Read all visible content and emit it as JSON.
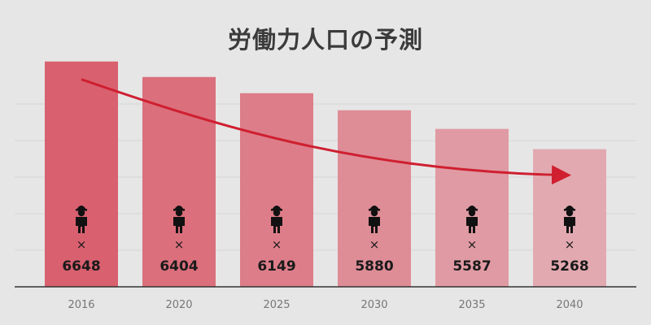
{
  "chart_data": {
    "type": "bar",
    "title": "労働力人口の予測",
    "categories": [
      "2016",
      "2020",
      "2025",
      "2030",
      "2035",
      "2040"
    ],
    "values": [
      6648,
      6404,
      6149,
      5880,
      5587,
      5268
    ],
    "value_prefix": "×",
    "xlabel": "",
    "ylabel": "",
    "ylim": [
      3100,
      6900
    ],
    "grid": true,
    "legend": "none",
    "trend_arrow": true,
    "icon": "person-with-hardhat-icon",
    "colors": {
      "bar_start": "#d9606f",
      "bar_end": "#e2a9b0",
      "arrow": "#cf1f30",
      "label": "#1a1a1a",
      "tick": "#777777",
      "grid": "#d6d6d6",
      "axis": "#333333"
    }
  }
}
